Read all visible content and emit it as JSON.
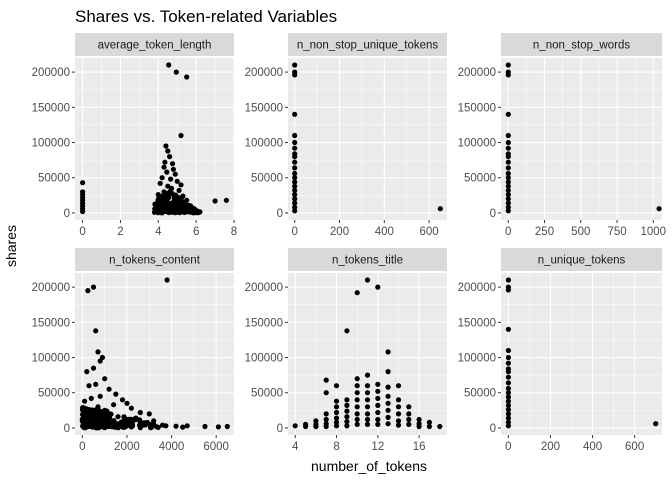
{
  "chart_data": {
    "type": "scatter",
    "title": "Shares vs. Token-related Variables",
    "xlabel": "number_of_tokens",
    "ylabel": "shares",
    "y_ticks": [
      0,
      50000,
      100000,
      150000,
      200000
    ],
    "y_tick_labels": [
      "0",
      "50000",
      "100000",
      "150000",
      "200000"
    ],
    "ylim": [
      -10000,
      220000
    ],
    "facet_layout": {
      "rows": 2,
      "cols": 3,
      "scales": "free_x"
    },
    "grid": true,
    "colors": {
      "panel_background": "#ebebeb",
      "strip_background": "#d9d9d9",
      "grid": "#ffffff",
      "points": "#000000"
    },
    "panels": [
      {
        "name": "average_token_length",
        "xlim": [
          -0.4,
          8.0
        ],
        "x_ticks": [
          0,
          2,
          4,
          6,
          8
        ],
        "x_tick_labels": [
          "0",
          "2",
          "4",
          "6",
          "8"
        ],
        "points": [
          [
            0,
            43000
          ],
          [
            0,
            30000
          ],
          [
            0,
            26000
          ],
          [
            0,
            22000
          ],
          [
            0,
            18000
          ],
          [
            0,
            14000
          ],
          [
            0,
            10000
          ],
          [
            0,
            6000
          ],
          [
            0,
            2000
          ],
          [
            4.55,
            210000
          ],
          [
            4.95,
            200000
          ],
          [
            5.5,
            193000
          ],
          [
            5.2,
            110000
          ],
          [
            4.4,
            95000
          ],
          [
            4.5,
            88000
          ],
          [
            4.6,
            80000
          ],
          [
            4.35,
            72000
          ],
          [
            4.75,
            70000
          ],
          [
            4.3,
            65000
          ],
          [
            4.8,
            62000
          ],
          [
            4.45,
            58000
          ],
          [
            4.9,
            55000
          ],
          [
            4.2,
            50000
          ],
          [
            4.65,
            48000
          ],
          [
            5.0,
            45000
          ],
          [
            4.1,
            42000
          ],
          [
            5.2,
            40000
          ],
          [
            4.5,
            38000
          ],
          [
            4.7,
            35000
          ],
          [
            5.1,
            32000
          ],
          [
            4.3,
            30000
          ],
          [
            4.0,
            26000
          ],
          [
            5.3,
            24000
          ],
          [
            4.55,
            22000
          ],
          [
            4.85,
            20000
          ],
          [
            5.5,
            18000
          ],
          [
            4.25,
            16000
          ],
          [
            3.9,
            12000
          ],
          [
            5.7,
            10000
          ],
          [
            4.6,
            8000
          ],
          [
            5.0,
            6000
          ],
          [
            3.85,
            4000
          ],
          [
            6.0,
            3000
          ],
          [
            4.4,
            2000
          ],
          [
            3.8,
            1000
          ],
          [
            6.2,
            1500
          ],
          [
            4.9,
            500
          ],
          [
            5.4,
            800
          ],
          [
            7.0,
            17000
          ],
          [
            7.6,
            18000
          ]
        ]
      },
      {
        "name": "n_non_stop_unique_tokens",
        "xlim": [
          -30,
          680
        ],
        "x_ticks": [
          0,
          200,
          400,
          600
        ],
        "x_tick_labels": [
          "0",
          "200",
          "400",
          "600"
        ],
        "points": [
          [
            0,
            210000
          ],
          [
            0,
            200000
          ],
          [
            0,
            196000
          ],
          [
            0,
            140000
          ],
          [
            0,
            110000
          ],
          [
            0,
            100000
          ],
          [
            0,
            92000
          ],
          [
            0,
            84000
          ],
          [
            0,
            80000
          ],
          [
            0,
            72000
          ],
          [
            0,
            64000
          ],
          [
            0,
            56000
          ],
          [
            0,
            50000
          ],
          [
            0,
            44000
          ],
          [
            0,
            38000
          ],
          [
            0,
            32000
          ],
          [
            0,
            26000
          ],
          [
            0,
            20000
          ],
          [
            0,
            14000
          ],
          [
            0,
            8000
          ],
          [
            0,
            3000
          ],
          [
            650,
            6000
          ]
        ]
      },
      {
        "name": "n_non_stop_words",
        "xlim": [
          -50,
          1060
        ],
        "x_ticks": [
          0,
          250,
          500,
          750,
          1000
        ],
        "x_tick_labels": [
          "0",
          "250",
          "500",
          "750",
          "1000"
        ],
        "points": [
          [
            0,
            210000
          ],
          [
            0,
            200000
          ],
          [
            0,
            196000
          ],
          [
            0,
            140000
          ],
          [
            0,
            110000
          ],
          [
            0,
            100000
          ],
          [
            0,
            92000
          ],
          [
            0,
            84000
          ],
          [
            0,
            80000
          ],
          [
            0,
            72000
          ],
          [
            0,
            64000
          ],
          [
            0,
            56000
          ],
          [
            0,
            50000
          ],
          [
            0,
            44000
          ],
          [
            0,
            38000
          ],
          [
            0,
            32000
          ],
          [
            0,
            26000
          ],
          [
            0,
            20000
          ],
          [
            0,
            14000
          ],
          [
            0,
            8000
          ],
          [
            0,
            3000
          ],
          [
            1040,
            6000
          ]
        ]
      },
      {
        "name": "n_tokens_content",
        "xlim": [
          -330,
          6800
        ],
        "x_ticks": [
          0,
          2000,
          4000,
          6000
        ],
        "x_tick_labels": [
          "0",
          "2000",
          "4000",
          "6000"
        ],
        "points": [
          [
            3800,
            210000
          ],
          [
            500,
            200000
          ],
          [
            250,
            195000
          ],
          [
            600,
            138000
          ],
          [
            700,
            108000
          ],
          [
            900,
            100000
          ],
          [
            800,
            95000
          ],
          [
            500,
            85000
          ],
          [
            200,
            80000
          ],
          [
            1000,
            70000
          ],
          [
            600,
            62000
          ],
          [
            300,
            60000
          ],
          [
            1200,
            55000
          ],
          [
            1500,
            48000
          ],
          [
            800,
            45000
          ],
          [
            400,
            42000
          ],
          [
            1800,
            40000
          ],
          [
            100,
            38000
          ],
          [
            2000,
            35000
          ],
          [
            700,
            30000
          ],
          [
            2200,
            28000
          ],
          [
            300,
            26000
          ],
          [
            1100,
            24000
          ],
          [
            2600,
            22000
          ],
          [
            3000,
            20000
          ],
          [
            500,
            18000
          ],
          [
            1600,
            16000
          ],
          [
            2400,
            14000
          ],
          [
            900,
            12000
          ],
          [
            3200,
            10000
          ],
          [
            1300,
            8000
          ],
          [
            2800,
            6000
          ],
          [
            200,
            5000
          ],
          [
            3600,
            4000
          ],
          [
            1900,
            3000
          ],
          [
            4200,
            2500
          ],
          [
            800,
            2000
          ],
          [
            2200,
            1500
          ],
          [
            4500,
            1200
          ],
          [
            1500,
            1000
          ],
          [
            3400,
            800
          ],
          [
            600,
            500
          ],
          [
            2600,
            400
          ],
          [
            4700,
            3000
          ],
          [
            5500,
            2000
          ],
          [
            6100,
            1500
          ],
          [
            6500,
            2000
          ],
          [
            1400,
            33000
          ],
          [
            1000,
            25000
          ],
          [
            700,
            22000
          ],
          [
            400,
            20000
          ]
        ]
      },
      {
        "name": "n_tokens_title",
        "xlim": [
          3.3,
          18.7
        ],
        "x_ticks": [
          4,
          8,
          12,
          16
        ],
        "x_tick_labels": [
          "4",
          "8",
          "12",
          "16"
        ],
        "points": [
          [
            4,
            3000
          ],
          [
            5,
            5000
          ],
          [
            5,
            2000
          ],
          [
            6,
            10000
          ],
          [
            6,
            5000
          ],
          [
            6,
            2000
          ],
          [
            7,
            68000
          ],
          [
            7,
            50000
          ],
          [
            7,
            20000
          ],
          [
            7,
            12000
          ],
          [
            7,
            6000
          ],
          [
            7,
            2000
          ],
          [
            8,
            60000
          ],
          [
            8,
            38000
          ],
          [
            8,
            30000
          ],
          [
            8,
            22000
          ],
          [
            8,
            14000
          ],
          [
            8,
            8000
          ],
          [
            8,
            3000
          ],
          [
            9,
            138000
          ],
          [
            9,
            40000
          ],
          [
            9,
            32000
          ],
          [
            9,
            24000
          ],
          [
            9,
            16000
          ],
          [
            9,
            9000
          ],
          [
            9,
            3000
          ],
          [
            10,
            192000
          ],
          [
            10,
            70000
          ],
          [
            10,
            60000
          ],
          [
            10,
            50000
          ],
          [
            10,
            40000
          ],
          [
            10,
            30000
          ],
          [
            10,
            20000
          ],
          [
            10,
            12000
          ],
          [
            10,
            5000
          ],
          [
            11,
            210000
          ],
          [
            11,
            75000
          ],
          [
            11,
            60000
          ],
          [
            11,
            50000
          ],
          [
            11,
            40000
          ],
          [
            11,
            30000
          ],
          [
            11,
            20000
          ],
          [
            11,
            12000
          ],
          [
            11,
            5000
          ],
          [
            12,
            200000
          ],
          [
            12,
            62000
          ],
          [
            12,
            52000
          ],
          [
            12,
            42000
          ],
          [
            12,
            32000
          ],
          [
            12,
            22000
          ],
          [
            12,
            12000
          ],
          [
            12,
            5000
          ],
          [
            13,
            108000
          ],
          [
            13,
            80000
          ],
          [
            13,
            58000
          ],
          [
            13,
            45000
          ],
          [
            13,
            35000
          ],
          [
            13,
            25000
          ],
          [
            13,
            15000
          ],
          [
            13,
            6000
          ],
          [
            14,
            60000
          ],
          [
            14,
            40000
          ],
          [
            14,
            30000
          ],
          [
            14,
            20000
          ],
          [
            14,
            10000
          ],
          [
            14,
            4000
          ],
          [
            15,
            30000
          ],
          [
            15,
            20000
          ],
          [
            15,
            12000
          ],
          [
            15,
            5000
          ],
          [
            16,
            12000
          ],
          [
            16,
            6000
          ],
          [
            16,
            2000
          ],
          [
            17,
            8000
          ],
          [
            17,
            2000
          ],
          [
            18,
            2000
          ]
        ]
      },
      {
        "name": "n_unique_tokens",
        "xlim": [
          -35,
          730
        ],
        "x_ticks": [
          0,
          200,
          400,
          600
        ],
        "x_tick_labels": [
          "0",
          "200",
          "400",
          "600"
        ],
        "points": [
          [
            0,
            210000
          ],
          [
            0,
            200000
          ],
          [
            0,
            196000
          ],
          [
            0,
            140000
          ],
          [
            0,
            110000
          ],
          [
            0,
            100000
          ],
          [
            0,
            92000
          ],
          [
            0,
            84000
          ],
          [
            0,
            80000
          ],
          [
            0,
            72000
          ],
          [
            0,
            64000
          ],
          [
            0,
            56000
          ],
          [
            0,
            50000
          ],
          [
            0,
            44000
          ],
          [
            0,
            38000
          ],
          [
            0,
            32000
          ],
          [
            0,
            26000
          ],
          [
            0,
            20000
          ],
          [
            0,
            14000
          ],
          [
            0,
            8000
          ],
          [
            0,
            3000
          ],
          [
            700,
            6000
          ]
        ]
      }
    ]
  }
}
